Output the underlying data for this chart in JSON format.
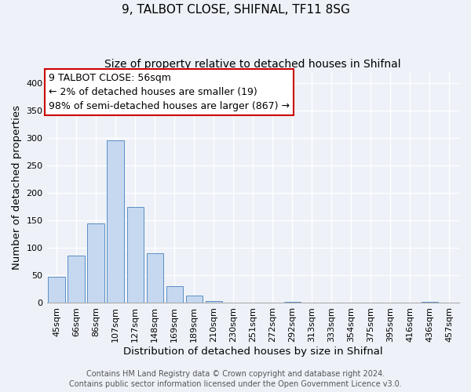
{
  "title": "9, TALBOT CLOSE, SHIFNAL, TF11 8SG",
  "subtitle": "Size of property relative to detached houses in Shifnal",
  "xlabel": "Distribution of detached houses by size in Shifnal",
  "ylabel": "Number of detached properties",
  "bar_labels": [
    "45sqm",
    "66sqm",
    "86sqm",
    "107sqm",
    "127sqm",
    "148sqm",
    "169sqm",
    "189sqm",
    "210sqm",
    "230sqm",
    "251sqm",
    "272sqm",
    "292sqm",
    "313sqm",
    "333sqm",
    "354sqm",
    "375sqm",
    "395sqm",
    "416sqm",
    "436sqm",
    "457sqm"
  ],
  "bar_values": [
    47,
    86,
    144,
    296,
    175,
    91,
    30,
    14,
    4,
    0,
    0,
    0,
    2,
    0,
    0,
    0,
    0,
    0,
    0,
    2,
    0
  ],
  "bar_color": "#c5d8f0",
  "bar_edge_color": "#5b8ec4",
  "annotation_line1": "9 TALBOT CLOSE: 56sqm",
  "annotation_line2": "← 2% of detached houses are smaller (19)",
  "annotation_line3": "98% of semi-detached houses are larger (867) →",
  "annotation_box_color": "#ffffff",
  "annotation_box_edge_color": "#cc0000",
  "ylim": [
    0,
    420
  ],
  "yticks": [
    0,
    50,
    100,
    150,
    200,
    250,
    300,
    350,
    400
  ],
  "footnote1": "Contains HM Land Registry data © Crown copyright and database right 2024.",
  "footnote2": "Contains public sector information licensed under the Open Government Licence v3.0.",
  "bg_color": "#eef2f8",
  "grid_color": "#ffffff",
  "title_fontsize": 11,
  "subtitle_fontsize": 10,
  "axis_label_fontsize": 9.5,
  "tick_fontsize": 8,
  "annotation_fontsize": 9,
  "footnote_fontsize": 7
}
